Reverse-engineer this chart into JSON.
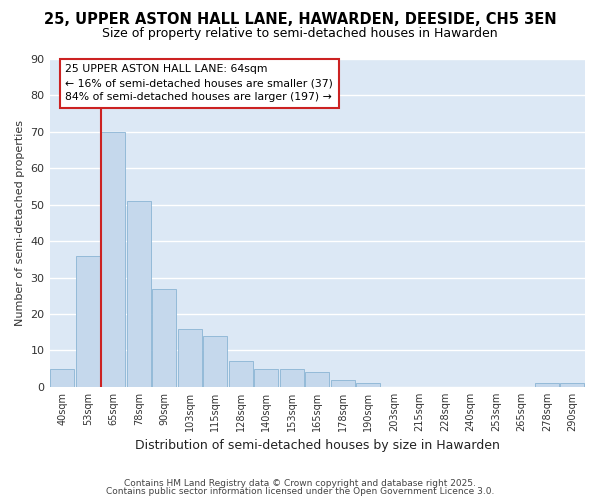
{
  "title1": "25, UPPER ASTON HALL LANE, HAWARDEN, DEESIDE, CH5 3EN",
  "title2": "Size of property relative to semi-detached houses in Hawarden",
  "xlabel": "Distribution of semi-detached houses by size in Hawarden",
  "ylabel": "Number of semi-detached properties",
  "categories": [
    "40sqm",
    "53sqm",
    "65sqm",
    "78sqm",
    "90sqm",
    "103sqm",
    "115sqm",
    "128sqm",
    "140sqm",
    "153sqm",
    "165sqm",
    "178sqm",
    "190sqm",
    "203sqm",
    "215sqm",
    "228sqm",
    "240sqm",
    "253sqm",
    "265sqm",
    "278sqm",
    "290sqm"
  ],
  "values": [
    5,
    36,
    70,
    51,
    27,
    16,
    14,
    7,
    5,
    5,
    4,
    2,
    1,
    0,
    0,
    0,
    0,
    0,
    0,
    1,
    1
  ],
  "bar_color": "#c5d8ec",
  "bar_edgecolor": "#8ab4d4",
  "redline_bar_index": 2,
  "redline_color": "#cc2222",
  "annotation_text": "25 UPPER ASTON HALL LANE: 64sqm\n← 16% of semi-detached houses are smaller (37)\n84% of semi-detached houses are larger (197) →",
  "annotation_box_edgecolor": "#cc2222",
  "annotation_box_facecolor": "#ffffff",
  "ylim": [
    0,
    90
  ],
  "yticks": [
    0,
    10,
    20,
    30,
    40,
    50,
    60,
    70,
    80,
    90
  ],
  "footer1": "Contains HM Land Registry data © Crown copyright and database right 2025.",
  "footer2": "Contains public sector information licensed under the Open Government Licence 3.0.",
  "outer_bg_color": "#ffffff",
  "plot_bg_color": "#dce8f5",
  "grid_color": "#ffffff",
  "title_fontsize": 10.5,
  "subtitle_fontsize": 9,
  "title_color": "#000000"
}
